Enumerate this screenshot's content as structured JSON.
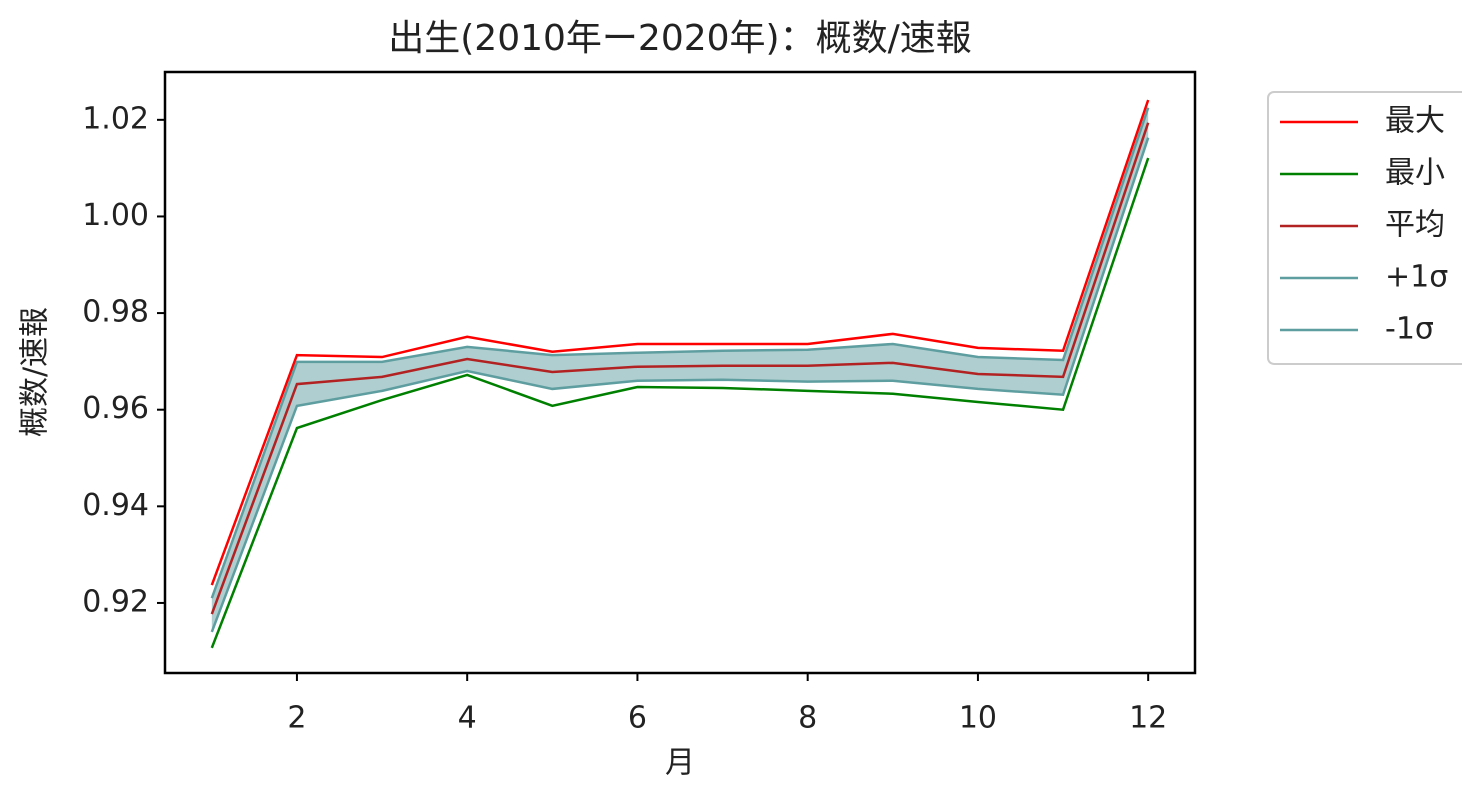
{
  "chart_data": {
    "type": "line",
    "title": "出生(2010年ー2020年)：概数/速報",
    "x_label": "月",
    "y_label": "概数/速報",
    "x": [
      1,
      2,
      3,
      4,
      5,
      6,
      7,
      8,
      9,
      10,
      11,
      12
    ],
    "series": [
      {
        "name": "最大",
        "color": "#ff0000",
        "values": [
          0.9237,
          0.9713,
          0.9709,
          0.9751,
          0.972,
          0.9736,
          0.9736,
          0.9736,
          0.9757,
          0.9728,
          0.9722,
          1.0241
        ]
      },
      {
        "name": "最小",
        "color": "#008000",
        "values": [
          0.9107,
          0.9562,
          0.962,
          0.9672,
          0.9608,
          0.9647,
          0.9645,
          0.9639,
          0.9633,
          0.9616,
          0.96,
          1.0121
        ]
      },
      {
        "name": "平均",
        "color": "#b22222",
        "values": [
          0.9177,
          0.9653,
          0.9668,
          0.9705,
          0.9678,
          0.9689,
          0.9691,
          0.9691,
          0.9697,
          0.9674,
          0.9668,
          1.0194
        ]
      },
      {
        "name": "+1σ",
        "color": "#5f9ea0",
        "values": [
          0.921,
          0.9699,
          0.9699,
          0.973,
          0.9713,
          0.9718,
          0.9722,
          0.9724,
          0.9736,
          0.9709,
          0.9703,
          1.0225
        ]
      },
      {
        "name": "-1σ",
        "color": "#5f9ea0",
        "values": [
          0.914,
          0.9608,
          0.9639,
          0.968,
          0.9643,
          0.966,
          0.9662,
          0.9658,
          0.966,
          0.9643,
          0.9631,
          1.0163
        ]
      }
    ],
    "band": {
      "series": [
        3,
        4
      ],
      "color": "#5f9ea0",
      "opacity": 0.5
    },
    "xlim": [
      0.45,
      12.55
    ],
    "ylim": [
      0.9055,
      1.0299
    ],
    "xticks": [
      2,
      4,
      6,
      8,
      10,
      12
    ],
    "yticks": [
      {
        "value": 0.92,
        "label": "0.92"
      },
      {
        "value": 0.94,
        "label": "0.94"
      },
      {
        "value": 0.96,
        "label": "0.96"
      },
      {
        "value": 0.98,
        "label": "0.98"
      },
      {
        "value": 1.0,
        "label": "1.00"
      },
      {
        "value": 1.02,
        "label": "1.02"
      }
    ],
    "grid": false,
    "legend": "outside-right"
  }
}
